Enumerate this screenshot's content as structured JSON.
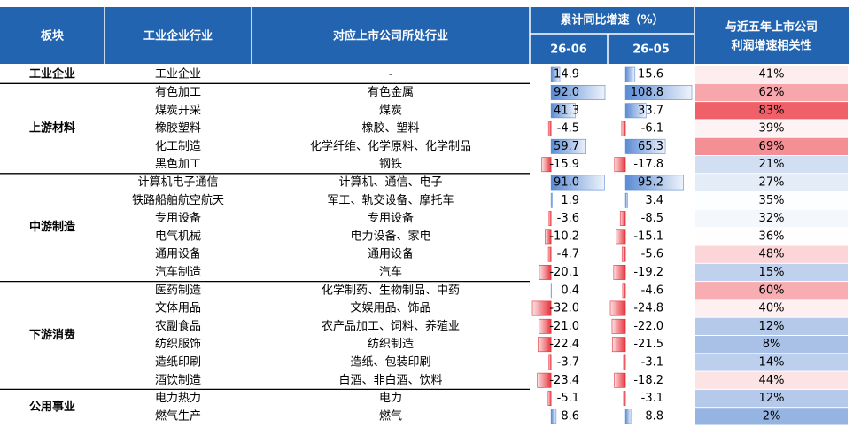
{
  "header": {
    "group": "板块",
    "industry": "工业企业行业",
    "listed": "对应上市公司所处行业",
    "growth": "累计同比增速（%）",
    "periods": [
      "26-06",
      "26-05"
    ],
    "correlation": [
      "与近五年上市公司",
      "利润增速相关性"
    ]
  },
  "groups": [
    {
      "name": "工业企业",
      "rows": [
        {
          "industry": "工业企业",
          "listed": "-",
          "values": [
            14.9,
            15.6
          ],
          "value_labels": [
            "14.9",
            "15.6"
          ],
          "correlation": 41,
          "correlation_label": "41%"
        }
      ]
    },
    {
      "name": "上游材料",
      "rows": [
        {
          "industry": "有色加工",
          "listed": "有色金属",
          "values": [
            92.0,
            108.8
          ],
          "value_labels": [
            "92.0",
            "108.8"
          ],
          "correlation": 62,
          "correlation_label": "62%"
        },
        {
          "industry": "煤炭开采",
          "listed": "煤炭",
          "values": [
            41.3,
            33.7
          ],
          "value_labels": [
            "41.3",
            "33.7"
          ],
          "correlation": 83,
          "correlation_label": "83%"
        },
        {
          "industry": "橡胶塑料",
          "listed": "橡胶、塑料",
          "values": [
            -4.5,
            -6.1
          ],
          "value_labels": [
            "-4.5",
            "-6.1"
          ],
          "correlation": 39,
          "correlation_label": "39%"
        },
        {
          "industry": "化工制造",
          "listed": "化学纤维、化学原料、化学制品",
          "values": [
            59.7,
            65.3
          ],
          "value_labels": [
            "59.7",
            "65.3"
          ],
          "correlation": 69,
          "correlation_label": "69%"
        },
        {
          "industry": "黑色加工",
          "listed": "钢铁",
          "values": [
            -15.9,
            -17.8
          ],
          "value_labels": [
            "-15.9",
            "-17.8"
          ],
          "correlation": 21,
          "correlation_label": "21%"
        }
      ]
    },
    {
      "name": "中游制造",
      "rows": [
        {
          "industry": "计算机电子通信",
          "listed": "计算机、通信、电子",
          "values": [
            91.0,
            95.2
          ],
          "value_labels": [
            "91.0",
            "95.2"
          ],
          "correlation": 27,
          "correlation_label": "27%"
        },
        {
          "industry": "铁路船舶航空航天",
          "listed": "军工、轨交设备、摩托车",
          "values": [
            1.9,
            3.4
          ],
          "value_labels": [
            "1.9",
            "3.4"
          ],
          "correlation": 35,
          "correlation_label": "35%"
        },
        {
          "industry": "专用设备",
          "listed": "专用设备",
          "values": [
            -3.6,
            -8.5
          ],
          "value_labels": [
            "-3.6",
            "-8.5"
          ],
          "correlation": 32,
          "correlation_label": "32%"
        },
        {
          "industry": "电气机械",
          "listed": "电力设备、家电",
          "values": [
            -10.2,
            -15.1
          ],
          "value_labels": [
            "-10.2",
            "-15.1"
          ],
          "correlation": 36,
          "correlation_label": "36%"
        },
        {
          "industry": "通用设备",
          "listed": "通用设备",
          "values": [
            -4.7,
            -5.6
          ],
          "value_labels": [
            "-4.7",
            "-5.6"
          ],
          "correlation": 48,
          "correlation_label": "48%"
        },
        {
          "industry": "汽车制造",
          "listed": "汽车",
          "values": [
            -20.1,
            -19.2
          ],
          "value_labels": [
            "-20.1",
            "-19.2"
          ],
          "correlation": 15,
          "correlation_label": "15%"
        }
      ]
    },
    {
      "name": "下游消费",
      "rows": [
        {
          "industry": "医药制造",
          "listed": "化学制药、生物制品、中药",
          "values": [
            0.4,
            -4.6
          ],
          "value_labels": [
            "0.4",
            "-4.6"
          ],
          "correlation": 60,
          "correlation_label": "60%"
        },
        {
          "industry": "文体用品",
          "listed": "文娱用品、饰品",
          "values": [
            -32.0,
            -24.8
          ],
          "value_labels": [
            "-32.0",
            "-24.8"
          ],
          "correlation": 40,
          "correlation_label": "40%"
        },
        {
          "industry": "农副食品",
          "listed": "农产品加工、饲料、养殖业",
          "values": [
            -21.0,
            -22.0
          ],
          "value_labels": [
            "-21.0",
            "-22.0"
          ],
          "correlation": 12,
          "correlation_label": "12%"
        },
        {
          "industry": "纺织服饰",
          "listed": "纺织制造",
          "values": [
            -22.4,
            -21.5
          ],
          "value_labels": [
            "-22.4",
            "-21.5"
          ],
          "correlation": 8,
          "correlation_label": "8%"
        },
        {
          "industry": "造纸印刷",
          "listed": "造纸、包装印刷",
          "values": [
            -3.7,
            -3.1
          ],
          "value_labels": [
            "-3.7",
            "-3.1"
          ],
          "correlation": 14,
          "correlation_label": "14%"
        },
        {
          "industry": "酒饮制造",
          "listed": "白酒、非白酒、饮料",
          "values": [
            -23.4,
            -18.2
          ],
          "value_labels": [
            "-23.4",
            "-18.2"
          ],
          "correlation": 44,
          "correlation_label": "44%"
        }
      ]
    },
    {
      "name": "公用事业",
      "rows": [
        {
          "industry": "电力热力",
          "listed": "电力",
          "values": [
            -5.1,
            -3.1
          ],
          "value_labels": [
            "-5.1",
            "-3.1"
          ],
          "correlation": 12,
          "correlation_label": "12%"
        },
        {
          "industry": "燃气生产",
          "listed": "燃气",
          "values": [
            8.6,
            8.8
          ],
          "value_labels": [
            "8.6",
            "8.8"
          ],
          "correlation": 2,
          "correlation_label": "2%"
        }
      ]
    }
  ]
}
